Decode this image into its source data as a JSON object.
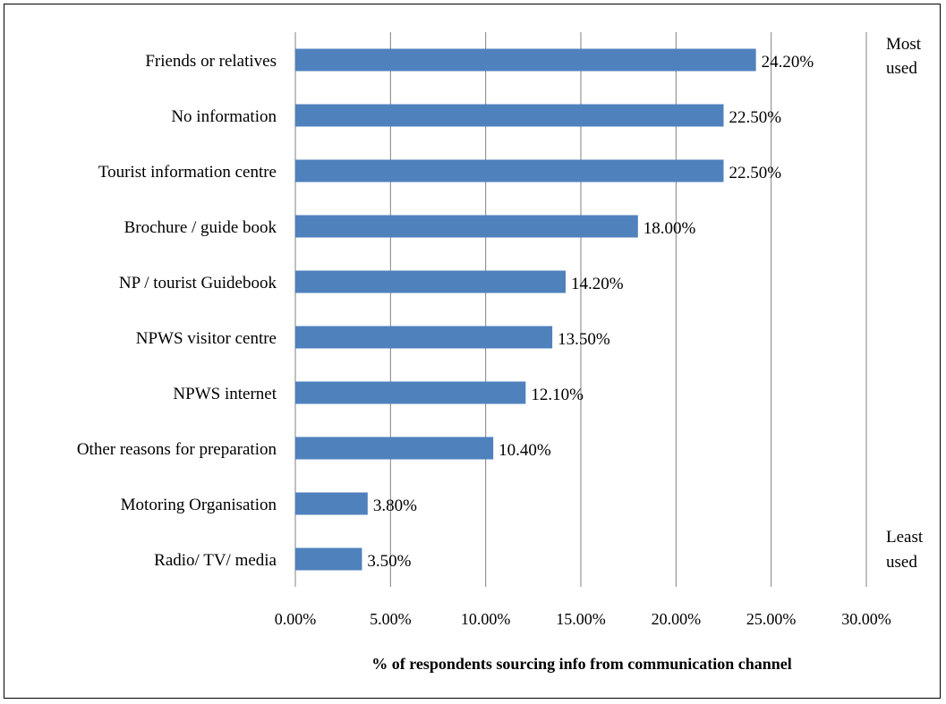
{
  "chart_data": {
    "type": "bar",
    "orientation": "horizontal",
    "categories": [
      "Friends or relatives",
      "No information",
      "Tourist information centre",
      "Brochure / guide book",
      "NP / tourist Guidebook",
      "NPWS visitor centre",
      "NPWS internet",
      "Other reasons for preparation",
      "Motoring Organisation",
      "Radio/ TV/ media"
    ],
    "values": [
      24.2,
      22.5,
      22.5,
      18.0,
      14.2,
      13.5,
      12.1,
      10.4,
      3.8,
      3.5
    ],
    "value_labels": [
      "24.20%",
      "22.50%",
      "22.50%",
      "18.00%",
      "14.20%",
      "13.50%",
      "12.10%",
      "10.40%",
      "3.80%",
      "3.50%"
    ],
    "xlim": [
      0,
      30
    ],
    "xticks": [
      0,
      5,
      10,
      15,
      20,
      25,
      30
    ],
    "xtick_labels": [
      "0.00%",
      "5.00%",
      "10.00%",
      "15.00%",
      "20.00%",
      "25.00%",
      "30.00%"
    ],
    "xlabel": "%  of respondents sourcing info from communication channel",
    "ylabel": "",
    "title": "",
    "grid": "vertical",
    "legend": "none",
    "bar_color": "#4f81bd",
    "grid_color": "#808080",
    "annotations": {
      "top": [
        "Most",
        "used"
      ],
      "bottom": [
        "Least",
        "used"
      ]
    }
  }
}
